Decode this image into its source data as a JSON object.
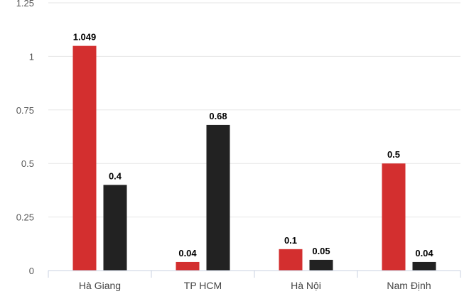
{
  "chart_data": {
    "type": "bar",
    "title": "",
    "xlabel": "",
    "ylabel": "",
    "categories": [
      "Hà Giang",
      "TP HCM",
      "Hà Nội",
      "Nam Định"
    ],
    "series": [
      {
        "color": "#d32f2f",
        "values": [
          1.049,
          0.04,
          0.1,
          0.5
        ]
      },
      {
        "color": "#222222",
        "values": [
          0.4,
          0.68,
          0.05,
          0.04
        ]
      }
    ],
    "data_labels": [
      [
        "1.049",
        "0.04",
        "0.1",
        "0.5"
      ],
      [
        "0.4",
        "0.68",
        "0.05",
        "0.04"
      ]
    ],
    "y_ticks": [
      0,
      0.25,
      0.5,
      0.75,
      1,
      1.25
    ],
    "y_tick_labels": [
      "0",
      "0.25",
      "0.5",
      "0.75",
      "1",
      "1.25"
    ],
    "ylim": [
      0,
      1.25
    ],
    "grid": true,
    "legend": "none"
  }
}
